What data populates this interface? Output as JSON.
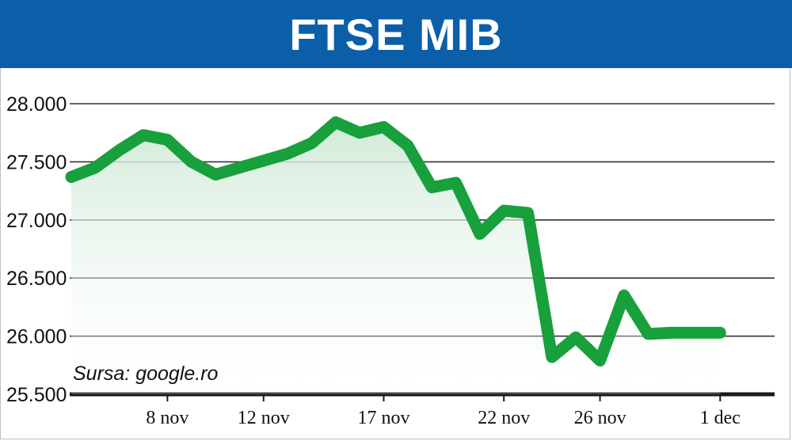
{
  "header": {
    "title": "FTSE MIB"
  },
  "source_note": "Sursa: google.ro",
  "colors": {
    "header_bg": "#0a5fa8",
    "line": "#17a03c",
    "fill": "#d8efe0",
    "grid": "#333333"
  },
  "chart_data": {
    "type": "line",
    "title": "FTSE MIB",
    "xlabel": "",
    "ylabel": "",
    "ylim": [
      25500,
      28000
    ],
    "y_ticks": [
      28000,
      27500,
      27000,
      26500,
      26000,
      25500
    ],
    "y_tick_labels": [
      "28.000",
      "27.500",
      "27.000",
      "26.500",
      "26.000",
      "25.500"
    ],
    "x_ticks": [
      "2018-11-08",
      "2018-11-12",
      "2018-11-17",
      "2018-11-22",
      "2018-11-26",
      "2018-12-01"
    ],
    "x_tick_labels": [
      "8 nov",
      "12 nov",
      "17 nov",
      "22 nov",
      "26 nov",
      "1 dec"
    ],
    "x_domain": [
      "2018-11-04",
      "2018-12-03"
    ],
    "grid": true,
    "series": [
      {
        "x": [
          "2018-11-04",
          "2018-11-05",
          "2018-11-06",
          "2018-11-07",
          "2018-11-08",
          "2018-11-09",
          "2018-11-10",
          "2018-11-11",
          "2018-11-12",
          "2018-11-13",
          "2018-11-14",
          "2018-11-15",
          "2018-11-16",
          "2018-11-17",
          "2018-11-18",
          "2018-11-19",
          "2018-11-20",
          "2018-11-21",
          "2018-11-22",
          "2018-11-23",
          "2018-11-24",
          "2018-11-25",
          "2018-11-26",
          "2018-11-27",
          "2018-11-28",
          "2018-11-29",
          "2018-11-30",
          "2018-12-01"
        ],
        "values": [
          27370,
          27450,
          27600,
          27730,
          27690,
          27500,
          27390,
          27450,
          27510,
          27570,
          27660,
          27840,
          27750,
          27800,
          27640,
          27280,
          27320,
          26880,
          27080,
          27060,
          25820,
          25990,
          25790,
          26350,
          26020,
          26030,
          26030,
          26030
        ]
      }
    ]
  }
}
